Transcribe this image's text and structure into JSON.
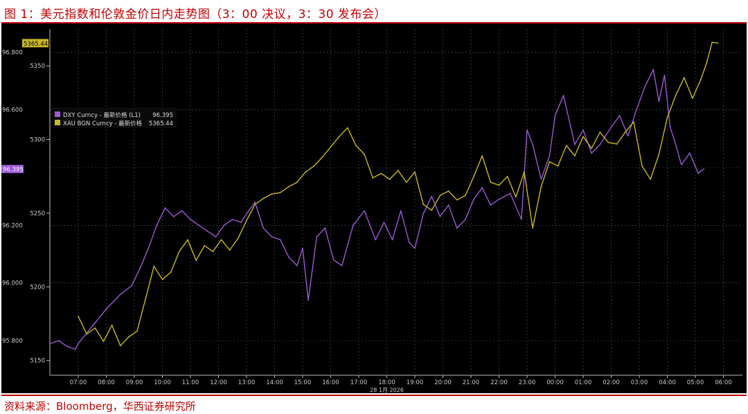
{
  "figure": {
    "title": "图 1：美元指数和伦敦金价日内走势图（3：00 决议，3：30 发布会）",
    "source": "资料来源：Bloomberg，华西证券研究所"
  },
  "colors": {
    "dxy": "#9b59d6",
    "xau": "#c9b827",
    "background": "#000000",
    "grid": "#5a5a5a",
    "accent": "#c00000"
  },
  "chart_data": {
    "type": "line",
    "x_ticks": [
      "07:00",
      "08:00",
      "09:00",
      "10:00",
      "11:00",
      "12:00",
      "13:00",
      "14:00",
      "15:00",
      "16:00",
      "17:00",
      "18:00",
      "19:00",
      "20:00",
      "21:00",
      "22:00",
      "23:00",
      "00:00",
      "01:00",
      "02:00",
      "03:00",
      "04:00",
      "05:00",
      "06:00"
    ],
    "x_sublabel": "28 1月 2026",
    "left_axis": {
      "ticks": [
        "96.800",
        "96.600",
        "96.400",
        "96.200",
        "96.000",
        "95.800"
      ],
      "range": [
        95.68,
        96.88
      ]
    },
    "right_axis": {
      "ticks": [
        "5350",
        "5300",
        "5250",
        "5200",
        "5150"
      ],
      "range": [
        5140,
        5375
      ]
    },
    "current_labels": {
      "dxy": "96.395",
      "xau": "5365.44"
    },
    "legend": {
      "position": "top-left",
      "entries": [
        {
          "name": "DXY Curncy - 最新价格 (L1)",
          "value": "96.395"
        },
        {
          "name": "XAU BGN Curncy - 最新价格",
          "value": "5365.44"
        }
      ]
    },
    "series": [
      {
        "name": "DXY Curncy",
        "axis": "left",
        "x": [
          6.0,
          6.3,
          6.6,
          6.9,
          7.0,
          7.5,
          8.0,
          8.5,
          8.9,
          9.2,
          9.5,
          9.8,
          10.1,
          10.4,
          10.7,
          11.0,
          11.3,
          11.6,
          11.9,
          12.2,
          12.5,
          12.8,
          13.0,
          13.3,
          13.6,
          13.9,
          14.2,
          14.5,
          14.8,
          15.0,
          15.2,
          15.5,
          15.8,
          16.1,
          16.4,
          16.8,
          17.2,
          17.6,
          17.9,
          18.2,
          18.5,
          18.8,
          19.0,
          19.3,
          19.6,
          19.9,
          20.2,
          20.5,
          20.8,
          21.1,
          21.4,
          21.7,
          22.0,
          22.4,
          22.8,
          23.0,
          23.2,
          23.5,
          23.8,
          24.0,
          24.3,
          24.7,
          25.0,
          25.3,
          25.6,
          26.0,
          26.3,
          26.6,
          26.9,
          27.2,
          27.5,
          27.7,
          27.9,
          28.1,
          28.3,
          28.5,
          28.8,
          29.1,
          29.3
        ],
        "values": [
          95.79,
          95.8,
          95.78,
          95.77,
          95.79,
          95.85,
          95.91,
          95.96,
          95.99,
          96.05,
          96.12,
          96.2,
          96.26,
          96.23,
          96.25,
          96.22,
          96.2,
          96.18,
          96.16,
          96.2,
          96.22,
          96.21,
          96.24,
          96.28,
          96.19,
          96.16,
          96.15,
          96.09,
          96.06,
          96.12,
          95.94,
          96.16,
          96.19,
          96.08,
          96.06,
          96.2,
          96.25,
          96.15,
          96.21,
          96.15,
          96.25,
          96.14,
          96.12,
          96.24,
          96.3,
          96.23,
          96.27,
          96.19,
          96.22,
          96.29,
          96.33,
          96.27,
          96.29,
          96.31,
          96.22,
          96.53,
          96.48,
          96.36,
          96.44,
          96.58,
          96.65,
          96.48,
          96.53,
          96.45,
          96.48,
          96.54,
          96.58,
          96.51,
          96.6,
          96.68,
          96.74,
          96.63,
          96.72,
          96.54,
          96.48,
          96.41,
          96.45,
          96.38,
          96.395
        ]
      },
      {
        "name": "XAU BGN Curncy",
        "axis": "right",
        "x": [
          7.0,
          7.3,
          7.6,
          7.9,
          8.2,
          8.5,
          8.8,
          9.1,
          9.4,
          9.7,
          10.0,
          10.3,
          10.6,
          10.9,
          11.2,
          11.5,
          11.8,
          12.1,
          12.4,
          12.7,
          13.0,
          13.3,
          13.6,
          13.9,
          14.2,
          14.5,
          14.8,
          15.1,
          15.4,
          15.7,
          16.0,
          16.3,
          16.6,
          16.9,
          17.2,
          17.5,
          17.8,
          18.1,
          18.4,
          18.7,
          19.0,
          19.3,
          19.6,
          19.9,
          20.2,
          20.5,
          20.8,
          21.1,
          21.4,
          21.7,
          22.0,
          22.3,
          22.6,
          22.9,
          23.2,
          23.5,
          23.8,
          24.1,
          24.4,
          24.7,
          25.0,
          25.3,
          25.6,
          25.9,
          26.2,
          26.5,
          26.8,
          27.1,
          27.4,
          27.7,
          28.0,
          28.3,
          28.6,
          28.9,
          29.2,
          29.4,
          29.6,
          29.8
        ],
        "values": [
          5180,
          5168,
          5172,
          5163,
          5174,
          5160,
          5166,
          5170,
          5192,
          5214,
          5205,
          5210,
          5224,
          5232,
          5218,
          5228,
          5224,
          5232,
          5225,
          5233,
          5245,
          5256,
          5260,
          5263,
          5264,
          5268,
          5271,
          5278,
          5282,
          5288,
          5295,
          5302,
          5308,
          5296,
          5290,
          5274,
          5277,
          5273,
          5279,
          5271,
          5278,
          5256,
          5252,
          5262,
          5265,
          5259,
          5262,
          5275,
          5289,
          5271,
          5269,
          5275,
          5261,
          5278,
          5240,
          5268,
          5285,
          5282,
          5296,
          5289,
          5302,
          5294,
          5305,
          5298,
          5297,
          5305,
          5312,
          5282,
          5273,
          5290,
          5315,
          5330,
          5342,
          5328,
          5341,
          5352,
          5366,
          5365.44
        ]
      }
    ]
  }
}
